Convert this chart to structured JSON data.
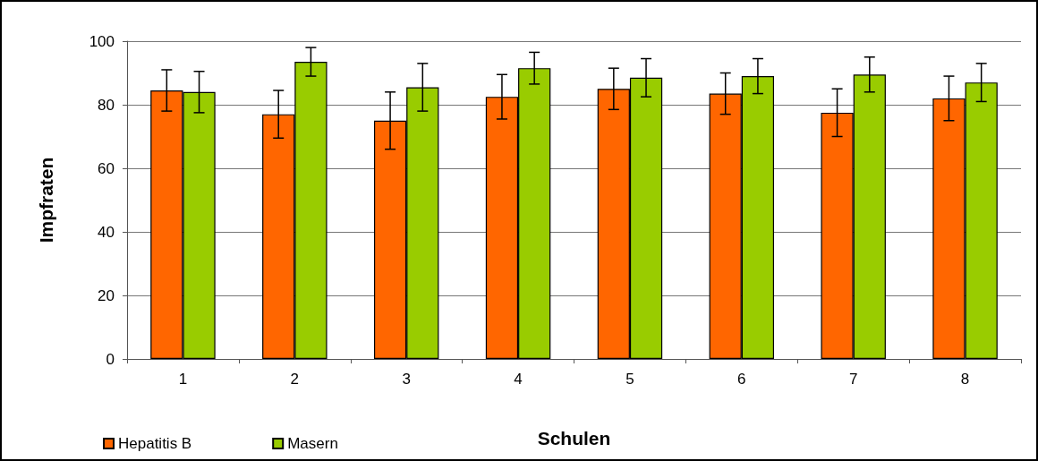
{
  "chart_data": {
    "type": "bar",
    "xlabel": "Schulen",
    "ylabel": "Impfraten",
    "categories": [
      "1",
      "2",
      "3",
      "4",
      "5",
      "6",
      "7",
      "8"
    ],
    "series": [
      {
        "name": "Hepatitis B",
        "color": "#ff6600",
        "values": [
          84.5,
          77,
          75,
          82.5,
          85,
          83.5,
          77.5,
          82
        ],
        "errors": [
          6.5,
          7.5,
          9,
          7,
          6.5,
          6.5,
          7.5,
          7
        ]
      },
      {
        "name": "Masern",
        "color": "#99cc00",
        "values": [
          84,
          93.5,
          85.5,
          91.5,
          88.5,
          89,
          89.5,
          87
        ],
        "errors": [
          6.5,
          4.5,
          7.5,
          5,
          6,
          5.5,
          5.5,
          6
        ]
      }
    ],
    "ylim": [
      0,
      100
    ],
    "yticks": [
      0,
      20,
      40,
      60,
      80,
      100
    ],
    "grid": "y",
    "legend": "bottom left"
  }
}
